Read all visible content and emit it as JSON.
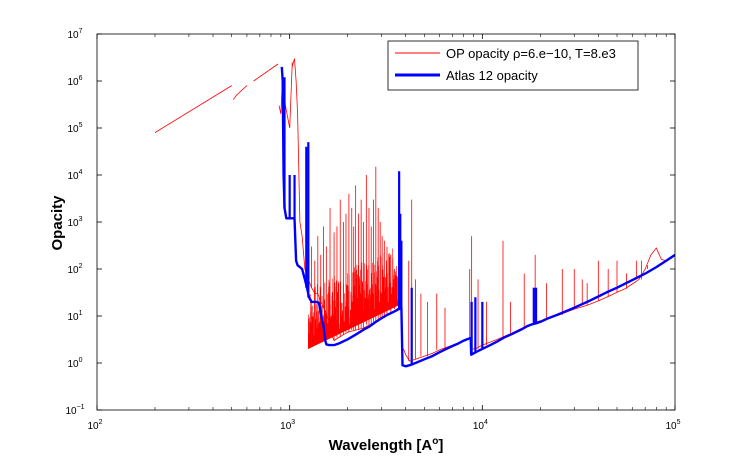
{
  "chart_data": {
    "type": "line",
    "xlabel_base": "Wavelength [A",
    "xlabel_sup": "o",
    "xlabel_end": "]",
    "ylabel": "Opacity",
    "xscale": "log",
    "yscale": "log",
    "xlim": [
      100,
      100000
    ],
    "ylim": [
      0.1,
      10000000
    ],
    "grid": false,
    "legend_position": "top-right",
    "x_ticks": [
      {
        "base": "10",
        "exp": "2",
        "value": 100
      },
      {
        "base": "10",
        "exp": "3",
        "value": 1000
      },
      {
        "base": "10",
        "exp": "4",
        "value": 10000
      },
      {
        "base": "10",
        "exp": "5",
        "value": 100000
      }
    ],
    "y_ticks": [
      {
        "base": "10",
        "exp": "−1",
        "value": 0.1
      },
      {
        "base": "10",
        "exp": "0",
        "value": 1
      },
      {
        "base": "10",
        "exp": "1",
        "value": 10
      },
      {
        "base": "10",
        "exp": "2",
        "value": 100
      },
      {
        "base": "10",
        "exp": "3",
        "value": 1000
      },
      {
        "base": "10",
        "exp": "4",
        "value": 10000
      },
      {
        "base": "10",
        "exp": "5",
        "value": 100000
      },
      {
        "base": "10",
        "exp": "6",
        "value": 1000000
      },
      {
        "base": "10",
        "exp": "7",
        "value": 10000000
      }
    ],
    "series": [
      {
        "name": "OP opacity ρ=6.e−10, T=8.e3",
        "color": "#ff0000",
        "segments": [
          [
            [
              200,
              80000
            ],
            [
              500,
              800000
            ]
          ],
          [
            [
              510,
              400000
            ],
            [
              530,
              500000
            ],
            [
              600,
              800000
            ]
          ],
          [
            [
              650,
              1000000
            ],
            [
              870,
              2300000
            ]
          ],
          [
            [
              880,
              300000
            ],
            [
              900,
              200000
            ],
            [
              920,
              1500000
            ],
            [
              950,
              300000
            ],
            [
              1000,
              100000
            ],
            [
              1030,
              2000000
            ],
            [
              1060,
              3000000
            ],
            [
              1080,
              1000000
            ],
            [
              1100,
              200000
            ],
            [
              1130,
              1000
            ],
            [
              1160,
              500
            ],
            [
              1200,
              100
            ],
            [
              1250,
              60
            ],
            [
              1300,
              40
            ],
            [
              1350,
              30
            ],
            [
              1400,
              30
            ],
            [
              1450,
              20
            ],
            [
              1500,
              15
            ],
            [
              1560,
              10
            ],
            [
              1600,
              8
            ],
            [
              1650,
              4
            ],
            [
              1700,
              3
            ],
            [
              1800,
              3.5
            ],
            [
              1900,
              4
            ],
            [
              2000,
              4.5
            ],
            [
              2200,
              5
            ],
            [
              2400,
              5.5
            ],
            [
              2600,
              6.5
            ],
            [
              2800,
              7.5
            ],
            [
              3000,
              9
            ],
            [
              3300,
              11
            ],
            [
              3600,
              14
            ],
            [
              3800,
              17
            ]
          ],
          [
            [
              3900,
              2
            ],
            [
              4000,
              1.5
            ],
            [
              4200,
              1.1
            ],
            [
              4500,
              1.2
            ],
            [
              5000,
              1.4
            ],
            [
              5500,
              1.6
            ],
            [
              6000,
              1.9
            ],
            [
              7000,
              2.4
            ],
            [
              8000,
              3
            ],
            [
              8700,
              3.4
            ]
          ],
          [
            [
              8900,
              2
            ],
            [
              9200,
              2
            ],
            [
              10000,
              2.4
            ],
            [
              12000,
              3.2
            ],
            [
              14000,
              4.2
            ],
            [
              16000,
              5.5
            ],
            [
              18000,
              6.8
            ],
            [
              20000,
              8
            ]
          ],
          [
            [
              21000,
              8.2
            ],
            [
              25000,
              10.5
            ],
            [
              30000,
              14
            ],
            [
              35000,
              17
            ],
            [
              40000,
              21
            ],
            [
              45000,
              26
            ],
            [
              50000,
              32
            ],
            [
              55000,
              38
            ],
            [
              60000,
              48
            ],
            [
              65000,
              60
            ],
            [
              70000,
              100
            ],
            [
              75000,
              200
            ],
            [
              80000,
              280
            ],
            [
              85000,
              160
            ],
            [
              90000,
              150
            ],
            [
              95000,
              180
            ],
            [
              100000,
              200
            ]
          ]
        ],
        "spikes": [
          [
            1030,
            2500000
          ],
          [
            1060,
            3000000
          ],
          [
            1260,
            200
          ],
          [
            1300,
            300
          ],
          [
            1350,
            150
          ],
          [
            1400,
            500
          ],
          [
            1450,
            200
          ],
          [
            1500,
            800
          ],
          [
            1550,
            300
          ],
          [
            1620,
            2000
          ],
          [
            1700,
            600
          ],
          [
            1760,
            800
          ],
          [
            1830,
            3000
          ],
          [
            1900,
            1000
          ],
          [
            1960,
            1500
          ],
          [
            2030,
            4000
          ],
          [
            2100,
            2000
          ],
          [
            2150,
            800
          ],
          [
            2200,
            6000
          ],
          [
            2280,
            1500
          ],
          [
            2350,
            3000
          ],
          [
            2420,
            1000
          ],
          [
            2500,
            10000
          ],
          [
            2580,
            2000
          ],
          [
            2650,
            800
          ],
          [
            2720,
            3000
          ],
          [
            2800,
            15000
          ],
          [
            2880,
            2000
          ],
          [
            2950,
            1000
          ],
          [
            3020,
            500
          ],
          [
            3100,
            400
          ],
          [
            3200,
            300
          ],
          [
            3350,
            200
          ],
          [
            3500,
            100
          ],
          [
            3700,
            60
          ],
          [
            4150,
            150
          ],
          [
            4300,
            3000
          ],
          [
            4500,
            60
          ],
          [
            4800,
            30
          ],
          [
            5200,
            20
          ],
          [
            5800,
            30
          ],
          [
            6400,
            15
          ],
          [
            8600,
            100
          ],
          [
            8800,
            500
          ],
          [
            9500,
            60
          ],
          [
            10500,
            20
          ],
          [
            12800,
            400
          ],
          [
            14000,
            20
          ],
          [
            16500,
            80
          ],
          [
            18800,
            200
          ],
          [
            21500,
            50
          ],
          [
            26000,
            100
          ],
          [
            30000,
            100
          ],
          [
            33000,
            60
          ],
          [
            35000,
            50
          ],
          [
            40000,
            150
          ],
          [
            45000,
            100
          ],
          [
            50000,
            150
          ],
          [
            56000,
            80
          ],
          [
            63000,
            150
          ],
          [
            67000,
            150
          ],
          [
            72000,
            120
          ]
        ],
        "noise_band": [
          [
            1250,
            2
          ],
          [
            3800,
            18
          ]
        ]
      },
      {
        "name": "Atlas 12 opacity",
        "color": "#0000ff",
        "points": [
          [
            910,
            2000000
          ],
          [
            920,
            1000000
          ],
          [
            930,
            10000
          ],
          [
            940,
            2000
          ],
          [
            960,
            1200
          ],
          [
            980,
            1200
          ],
          [
            1000,
            1200
          ],
          [
            1020,
            1200
          ],
          [
            1060,
            1200
          ],
          [
            1080,
            150
          ],
          [
            1100,
            120
          ],
          [
            1130,
            110
          ],
          [
            1160,
            100
          ],
          [
            1200,
            60
          ],
          [
            1230,
            40
          ],
          [
            1260,
            25
          ],
          [
            1300,
            20
          ],
          [
            1330,
            20
          ],
          [
            1380,
            20
          ],
          [
            1420,
            19
          ],
          [
            1460,
            10
          ],
          [
            1500,
            6
          ],
          [
            1530,
            3
          ],
          [
            1550,
            2.5
          ],
          [
            1600,
            2.4
          ],
          [
            1700,
            2.4
          ],
          [
            1800,
            2.6
          ],
          [
            2000,
            3.2
          ],
          [
            2200,
            4
          ],
          [
            2400,
            5
          ],
          [
            2600,
            6
          ],
          [
            2800,
            7.5
          ],
          [
            3000,
            9
          ],
          [
            3200,
            10.5
          ],
          [
            3500,
            12.5
          ],
          [
            3800,
            15
          ],
          [
            3850,
            0.9
          ],
          [
            4000,
            0.85
          ],
          [
            4200,
            0.9
          ],
          [
            4500,
            1
          ],
          [
            5000,
            1.2
          ],
          [
            5500,
            1.4
          ],
          [
            6000,
            1.7
          ],
          [
            6500,
            2
          ],
          [
            7000,
            2.3
          ],
          [
            7500,
            2.6
          ],
          [
            8000,
            3
          ],
          [
            8500,
            3.3
          ],
          [
            8700,
            3.4
          ],
          [
            8750,
            1.5
          ],
          [
            9000,
            1.6
          ],
          [
            9500,
            1.8
          ],
          [
            10000,
            2
          ],
          [
            11000,
            2.4
          ],
          [
            12000,
            2.9
          ],
          [
            13000,
            3.5
          ],
          [
            14000,
            4
          ],
          [
            15000,
            4.6
          ],
          [
            16000,
            5.2
          ],
          [
            17000,
            6
          ],
          [
            18000,
            6.6
          ],
          [
            19000,
            7
          ],
          [
            20000,
            7.5
          ],
          [
            22000,
            9
          ],
          [
            25000,
            11
          ],
          [
            30000,
            15
          ],
          [
            35000,
            20
          ],
          [
            40000,
            26
          ],
          [
            45000,
            33
          ],
          [
            50000,
            40
          ],
          [
            60000,
            58
          ],
          [
            70000,
            80
          ],
          [
            80000,
            110
          ],
          [
            90000,
            150
          ],
          [
            100000,
            200
          ]
        ],
        "spikes": [
          [
            910,
            2000000
          ],
          [
            940,
            1200000
          ],
          [
            1000,
            10000
          ],
          [
            1060,
            10000
          ],
          [
            1220,
            40000
          ],
          [
            1250,
            50000
          ],
          [
            3700,
            12000
          ],
          [
            3750,
            1500
          ],
          [
            3800,
            400
          ],
          [
            4300,
            40
          ],
          [
            8800,
            20
          ],
          [
            9200,
            25
          ],
          [
            10000,
            20
          ],
          [
            18500,
            40
          ],
          [
            19000,
            40
          ]
        ]
      }
    ]
  }
}
